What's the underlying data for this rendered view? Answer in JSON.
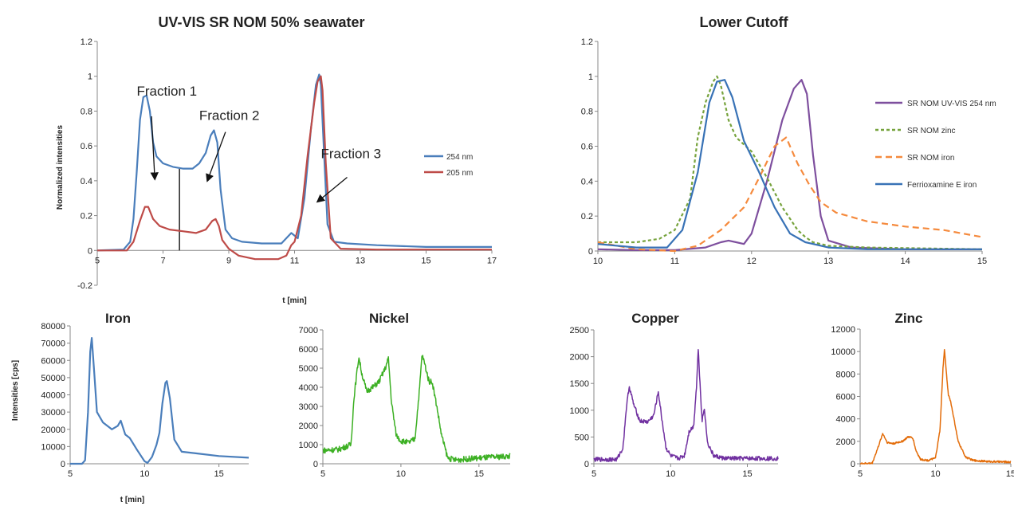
{
  "chart_data": [
    {
      "id": "uvvis",
      "type": "line",
      "title": "UV-VIS SR NOM 50% seawater",
      "xlabel": "t [min]",
      "ylabel": "Normalized intensities",
      "xlim": [
        5,
        17
      ],
      "ylim": [
        -0.2,
        1.2
      ],
      "xticks": [
        5,
        7,
        9,
        11,
        13,
        15,
        17
      ],
      "yticks": [
        -0.2,
        0,
        0.2,
        0.4,
        0.6,
        0.8,
        1,
        1.2
      ],
      "xtick_labels": [
        "5",
        "7",
        "9",
        "11",
        "13",
        "15",
        "17"
      ],
      "ytick_labels": [
        "-0.2",
        "0",
        "0.2",
        "0.4",
        "0.6",
        "0.8",
        "1",
        "1.2"
      ],
      "grid": false,
      "legend": "right",
      "series": [
        {
          "name": "254 nm",
          "color": "#4a7ebb",
          "x": [
            5,
            5.8,
            6.0,
            6.1,
            6.2,
            6.3,
            6.4,
            6.5,
            6.6,
            6.7,
            6.8,
            7.0,
            7.3,
            7.6,
            7.9,
            8.1,
            8.3,
            8.45,
            8.55,
            8.65,
            8.75,
            8.9,
            9.1,
            9.4,
            10.0,
            10.6,
            10.9,
            11.1,
            11.3,
            11.5,
            11.65,
            11.75,
            11.8,
            11.9,
            12.0,
            12.2,
            12.6,
            13.5,
            15,
            17
          ],
          "y": [
            0,
            0.005,
            0.05,
            0.18,
            0.45,
            0.75,
            0.88,
            0.89,
            0.8,
            0.62,
            0.54,
            0.5,
            0.48,
            0.47,
            0.47,
            0.5,
            0.56,
            0.66,
            0.69,
            0.62,
            0.35,
            0.12,
            0.07,
            0.05,
            0.04,
            0.04,
            0.1,
            0.07,
            0.3,
            0.7,
            0.95,
            1.01,
            0.95,
            0.55,
            0.15,
            0.05,
            0.04,
            0.03,
            0.02,
            0.02
          ]
        },
        {
          "name": "205 nm",
          "color": "#be4b48",
          "x": [
            5,
            5.9,
            6.1,
            6.3,
            6.45,
            6.55,
            6.7,
            6.9,
            7.2,
            7.6,
            8.0,
            8.3,
            8.5,
            8.6,
            8.7,
            8.8,
            9.0,
            9.3,
            9.8,
            10.5,
            10.75,
            10.9,
            11.0,
            11.2,
            11.4,
            11.6,
            11.7,
            11.8,
            11.85,
            11.95,
            12.1,
            12.4,
            13.5,
            15,
            17
          ],
          "y": [
            0,
            0,
            0.05,
            0.17,
            0.25,
            0.25,
            0.18,
            0.14,
            0.12,
            0.11,
            0.1,
            0.12,
            0.17,
            0.18,
            0.14,
            0.06,
            0.01,
            -0.03,
            -0.05,
            -0.05,
            -0.03,
            0.03,
            0.05,
            0.2,
            0.55,
            0.85,
            0.97,
            1.0,
            0.92,
            0.5,
            0.07,
            0.01,
            0.005,
            0.005,
            0.005
          ]
        }
      ],
      "annotations": [
        {
          "text": "Fraction 1",
          "at": [
            6.2,
            0.89
          ],
          "arrow_to": [
            6.75,
            0.41
          ]
        },
        {
          "text": "Fraction 2",
          "at": [
            8.1,
            0.75
          ],
          "arrow_to": [
            8.35,
            0.4
          ]
        },
        {
          "text": "Fraction 3",
          "at": [
            11.8,
            0.53
          ],
          "arrow_to": [
            11.7,
            0.28
          ]
        }
      ],
      "divider_x": 7.5
    },
    {
      "id": "cutoff",
      "type": "line",
      "title": "Lower Cutoff",
      "xlabel": "",
      "ylabel": "",
      "xlim": [
        10,
        15
      ],
      "ylim": [
        0,
        1.2
      ],
      "xticks": [
        10,
        11,
        12,
        13,
        14,
        15
      ],
      "yticks": [
        0,
        0.2,
        0.4,
        0.6,
        0.8,
        1,
        1.2
      ],
      "xtick_labels": [
        "10",
        "11",
        "12",
        "13",
        "14",
        "15"
      ],
      "ytick_labels": [
        "0",
        "0.2",
        "0.4",
        "0.6",
        "0.8",
        "1",
        "1.2"
      ],
      "grid": false,
      "legend": "right",
      "series": [
        {
          "name": "SR NOM UV-VIS 254 nm",
          "color": "#7e4f9e",
          "dash": "",
          "x": [
            10,
            10.5,
            11.0,
            11.4,
            11.6,
            11.7,
            11.8,
            11.9,
            12.0,
            12.2,
            12.4,
            12.55,
            12.65,
            12.72,
            12.8,
            12.9,
            13.0,
            13.3,
            14,
            15
          ],
          "y": [
            0.01,
            0.005,
            0.005,
            0.02,
            0.05,
            0.06,
            0.05,
            0.04,
            0.1,
            0.4,
            0.75,
            0.93,
            0.98,
            0.9,
            0.55,
            0.2,
            0.06,
            0.02,
            0.01,
            0.01
          ]
        },
        {
          "name": "SR NOM zinc",
          "color": "#77a33d",
          "dash": "4 3",
          "x": [
            10,
            10.5,
            10.8,
            11.0,
            11.2,
            11.3,
            11.4,
            11.5,
            11.55,
            11.6,
            11.7,
            11.8,
            12.0,
            12.2,
            12.4,
            12.6,
            12.7,
            12.8,
            13.0,
            13.5,
            15
          ],
          "y": [
            0.05,
            0.05,
            0.07,
            0.12,
            0.3,
            0.65,
            0.85,
            0.97,
            1.0,
            0.95,
            0.75,
            0.65,
            0.57,
            0.42,
            0.25,
            0.12,
            0.08,
            0.05,
            0.03,
            0.02,
            0.01
          ]
        },
        {
          "name": "SR NOM iron",
          "color": "#f58a3d",
          "dash": "8 5",
          "x": [
            10,
            10.5,
            11.0,
            11.3,
            11.6,
            11.9,
            12.1,
            12.3,
            12.45,
            12.6,
            12.75,
            12.9,
            13.1,
            13.5,
            14,
            14.5,
            15
          ],
          "y": [
            0.05,
            0.01,
            0.0,
            0.03,
            0.12,
            0.25,
            0.42,
            0.6,
            0.65,
            0.5,
            0.38,
            0.28,
            0.22,
            0.17,
            0.14,
            0.12,
            0.08
          ]
        },
        {
          "name": "Ferrioxamine E iron",
          "color": "#3872b6",
          "dash": "",
          "x": [
            10,
            10.5,
            10.9,
            11.1,
            11.3,
            11.45,
            11.55,
            11.65,
            11.75,
            11.9,
            12.1,
            12.3,
            12.5,
            12.7,
            13.0,
            13.5,
            15
          ],
          "y": [
            0.04,
            0.02,
            0.02,
            0.12,
            0.45,
            0.85,
            0.97,
            0.98,
            0.88,
            0.63,
            0.45,
            0.25,
            0.1,
            0.05,
            0.02,
            0.01,
            0.01
          ]
        }
      ]
    },
    {
      "id": "iron",
      "type": "line",
      "title": "Iron",
      "xlabel": "t [min]",
      "ylabel": "Intensities [cps]",
      "xlim": [
        5,
        17
      ],
      "ylim": [
        0,
        80000
      ],
      "xticks": [
        5,
        10,
        15
      ],
      "yticks": [
        0,
        10000,
        20000,
        30000,
        40000,
        50000,
        60000,
        70000,
        80000
      ],
      "xtick_labels": [
        "5",
        "10",
        "15"
      ],
      "ytick_labels": [
        "0",
        "10000",
        "20000",
        "30000",
        "40000",
        "50000",
        "60000",
        "70000",
        "80000"
      ],
      "series": [
        {
          "name": "",
          "color": "#4a7ebb",
          "x": [
            5,
            5.8,
            6.0,
            6.2,
            6.35,
            6.45,
            6.6,
            6.8,
            7.2,
            7.8,
            8.2,
            8.4,
            8.55,
            8.7,
            9.0,
            9.5,
            10.0,
            10.2,
            10.5,
            10.8,
            11.0,
            11.2,
            11.4,
            11.5,
            11.7,
            12.0,
            12.5,
            13.5,
            15,
            17
          ],
          "y": [
            0,
            0,
            2000,
            30000,
            65000,
            73000,
            55000,
            30000,
            24000,
            20000,
            22000,
            25000,
            21000,
            17000,
            15000,
            8000,
            1500,
            500,
            4000,
            11000,
            18000,
            35000,
            47000,
            48000,
            38000,
            14000,
            7000,
            6000,
            4500,
            3500
          ]
        }
      ]
    },
    {
      "id": "nickel",
      "type": "line",
      "title": "Nickel",
      "xlabel": "",
      "ylabel": "",
      "xlim": [
        5,
        17
      ],
      "ylim": [
        0,
        7000
      ],
      "xticks": [
        5,
        10,
        15
      ],
      "yticks": [
        0,
        1000,
        2000,
        3000,
        4000,
        5000,
        6000,
        7000
      ],
      "xtick_labels": [
        "5",
        "10",
        "15"
      ],
      "ytick_labels": [
        "0",
        "1000",
        "2000",
        "3000",
        "4000",
        "5000",
        "6000",
        "7000"
      ],
      "series": [
        {
          "name": "",
          "color": "#3cb023",
          "x": [
            5,
            6.0,
            6.8,
            7.0,
            7.3,
            7.5,
            7.8,
            8.2,
            8.6,
            9.0,
            9.2,
            9.4,
            9.7,
            10.0,
            10.5,
            10.9,
            11.2,
            11.35,
            11.5,
            11.8,
            12.0,
            12.3,
            12.6,
            13.0,
            13.5,
            15,
            17
          ],
          "y": [
            700,
            750,
            1000,
            3500,
            5600,
            4700,
            3800,
            4000,
            4300,
            5000,
            5500,
            3200,
            1500,
            1200,
            1100,
            1300,
            4000,
            5700,
            5300,
            4300,
            4300,
            3000,
            1500,
            300,
            200,
            300,
            400
          ],
          "noise": 150
        }
      ]
    },
    {
      "id": "copper",
      "type": "line",
      "title": "Copper",
      "xlabel": "",
      "ylabel": "",
      "xlim": [
        5,
        17
      ],
      "ylim": [
        0,
        2500
      ],
      "xticks": [
        5,
        10,
        15
      ],
      "yticks": [
        0,
        500,
        1000,
        1500,
        2000,
        2500
      ],
      "xtick_labels": [
        "5",
        "10",
        "15"
      ],
      "ytick_labels": [
        "0",
        "500",
        "1000",
        "1500",
        "2000",
        "2500"
      ],
      "series": [
        {
          "name": "",
          "color": "#7030a0",
          "x": [
            5,
            6.5,
            6.9,
            7.1,
            7.3,
            7.6,
            8.0,
            8.5,
            8.9,
            9.2,
            9.4,
            9.7,
            10.0,
            10.5,
            10.9,
            11.2,
            11.5,
            11.7,
            11.8,
            11.9,
            12.05,
            12.2,
            12.4,
            12.8,
            13.5,
            15,
            17
          ],
          "y": [
            80,
            80,
            300,
            1000,
            1450,
            1100,
            800,
            780,
            900,
            1350,
            900,
            300,
            150,
            100,
            150,
            600,
            700,
            1500,
            2150,
            1600,
            800,
            1050,
            400,
            150,
            100,
            100,
            100
          ],
          "noise": 40
        }
      ]
    },
    {
      "id": "zinc",
      "type": "line",
      "title": "Zinc",
      "xlabel": "",
      "ylabel": "",
      "xlim": [
        5,
        15
      ],
      "ylim": [
        0,
        12000
      ],
      "xticks": [
        5,
        10,
        15
      ],
      "yticks": [
        0,
        2000,
        4000,
        6000,
        8000,
        10000,
        12000
      ],
      "xtick_labels": [
        "5",
        "10",
        "15"
      ],
      "ytick_labels": [
        "0",
        "2000",
        "4000",
        "6000",
        "8000",
        "10000",
        "12000"
      ],
      "series": [
        {
          "name": "",
          "color": "#e36c09",
          "x": [
            5,
            5.8,
            6.2,
            6.5,
            6.8,
            7.2,
            7.8,
            8.2,
            8.5,
            8.7,
            9.0,
            9.5,
            10.0,
            10.3,
            10.5,
            10.6,
            10.7,
            10.85,
            11.0,
            11.2,
            11.5,
            12.0,
            12.5,
            13.5,
            15
          ],
          "y": [
            0,
            50,
            1500,
            2700,
            1900,
            1800,
            2000,
            2400,
            2300,
            1200,
            400,
            300,
            500,
            3000,
            8500,
            10200,
            8500,
            6200,
            5600,
            4200,
            2000,
            600,
            300,
            200,
            150
          ],
          "noise": 80
        }
      ]
    }
  ]
}
